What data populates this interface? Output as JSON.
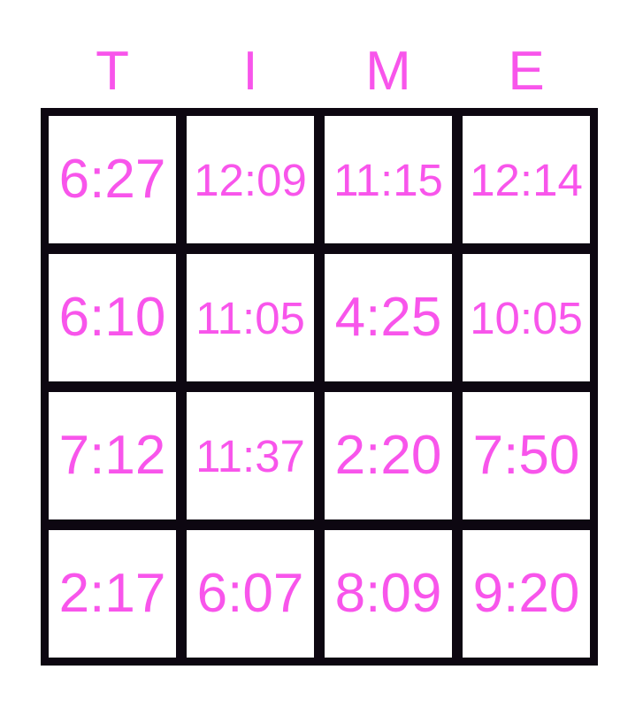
{
  "theme": {
    "accent": "#f855eb",
    "grid_line": "#0d0711",
    "cell_background": "#ffffff",
    "page_background": "#ffffff"
  },
  "header": {
    "title": "TIME",
    "letters": [
      "T",
      "I",
      "M",
      "E"
    ]
  },
  "board": {
    "rows": [
      [
        "6:27",
        "12:09",
        "11:15",
        "12:14"
      ],
      [
        "6:10",
        "11:05",
        "4:25",
        "10:05"
      ],
      [
        "7:12",
        "11:37",
        "2:20",
        "7:50"
      ],
      [
        "2:17",
        "6:07",
        "8:09",
        "9:20"
      ]
    ]
  }
}
